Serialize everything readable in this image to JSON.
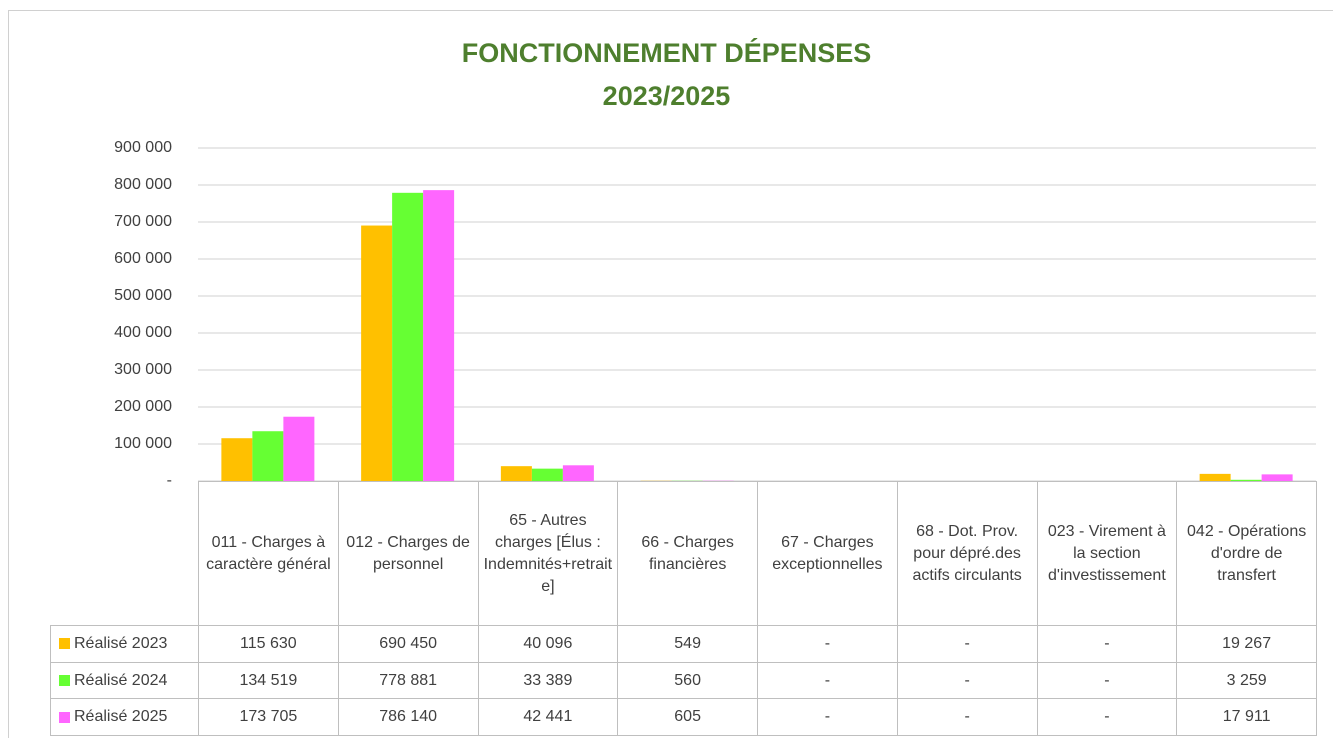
{
  "chart_data": {
    "type": "bar",
    "title": [
      "FONCTIONNEMENT DÉPENSES",
      "2023/2025"
    ],
    "categories": [
      "011 - Charges à caractère général",
      "012 - Charges de personnel",
      "65 - Autres charges [Élus : Indemnités+retraite]",
      "66 - Charges financières",
      "67 - Charges exceptionnelles",
      "68 - Dot. Prov. pour dépré.des actifs circulants",
      "023 - Virement à la section d'investissement",
      "042 - Opérations d'ordre de transfert"
    ],
    "series": [
      {
        "name": "Réalisé 2023",
        "color": "#ffc000",
        "values": [
          115630,
          690450,
          40096,
          549,
          0,
          0,
          0,
          19267
        ],
        "value_labels": [
          "115 630",
          "690 450",
          "40 096",
          "549",
          "-",
          "-",
          "-",
          "19 267"
        ]
      },
      {
        "name": "Réalisé 2024",
        "color": "#66ff33",
        "values": [
          134519,
          778881,
          33389,
          560,
          0,
          0,
          0,
          3259
        ],
        "value_labels": [
          "134 519",
          "778 881",
          "33 389",
          "560",
          "-",
          "-",
          "-",
          "3 259"
        ]
      },
      {
        "name": "Réalisé 2025",
        "color": "#ff66ff",
        "values": [
          173705,
          786140,
          42441,
          605,
          0,
          0,
          0,
          17911
        ],
        "value_labels": [
          "173 705",
          "786 140",
          "42 441",
          "605",
          "-",
          "-",
          "-",
          "17 911"
        ]
      }
    ],
    "ylim": [
      0,
      900000
    ],
    "yticks": [
      {
        "value": 0,
        "label": "-"
      },
      {
        "value": 100000,
        "label": "100 000"
      },
      {
        "value": 200000,
        "label": "200 000"
      },
      {
        "value": 300000,
        "label": "300 000"
      },
      {
        "value": 400000,
        "label": "400 000"
      },
      {
        "value": 500000,
        "label": "500 000"
      },
      {
        "value": 600000,
        "label": "600 000"
      },
      {
        "value": 700000,
        "label": "700 000"
      },
      {
        "value": 800000,
        "label": "800 000"
      },
      {
        "value": 900000,
        "label": "900 000"
      }
    ],
    "grid": true
  }
}
